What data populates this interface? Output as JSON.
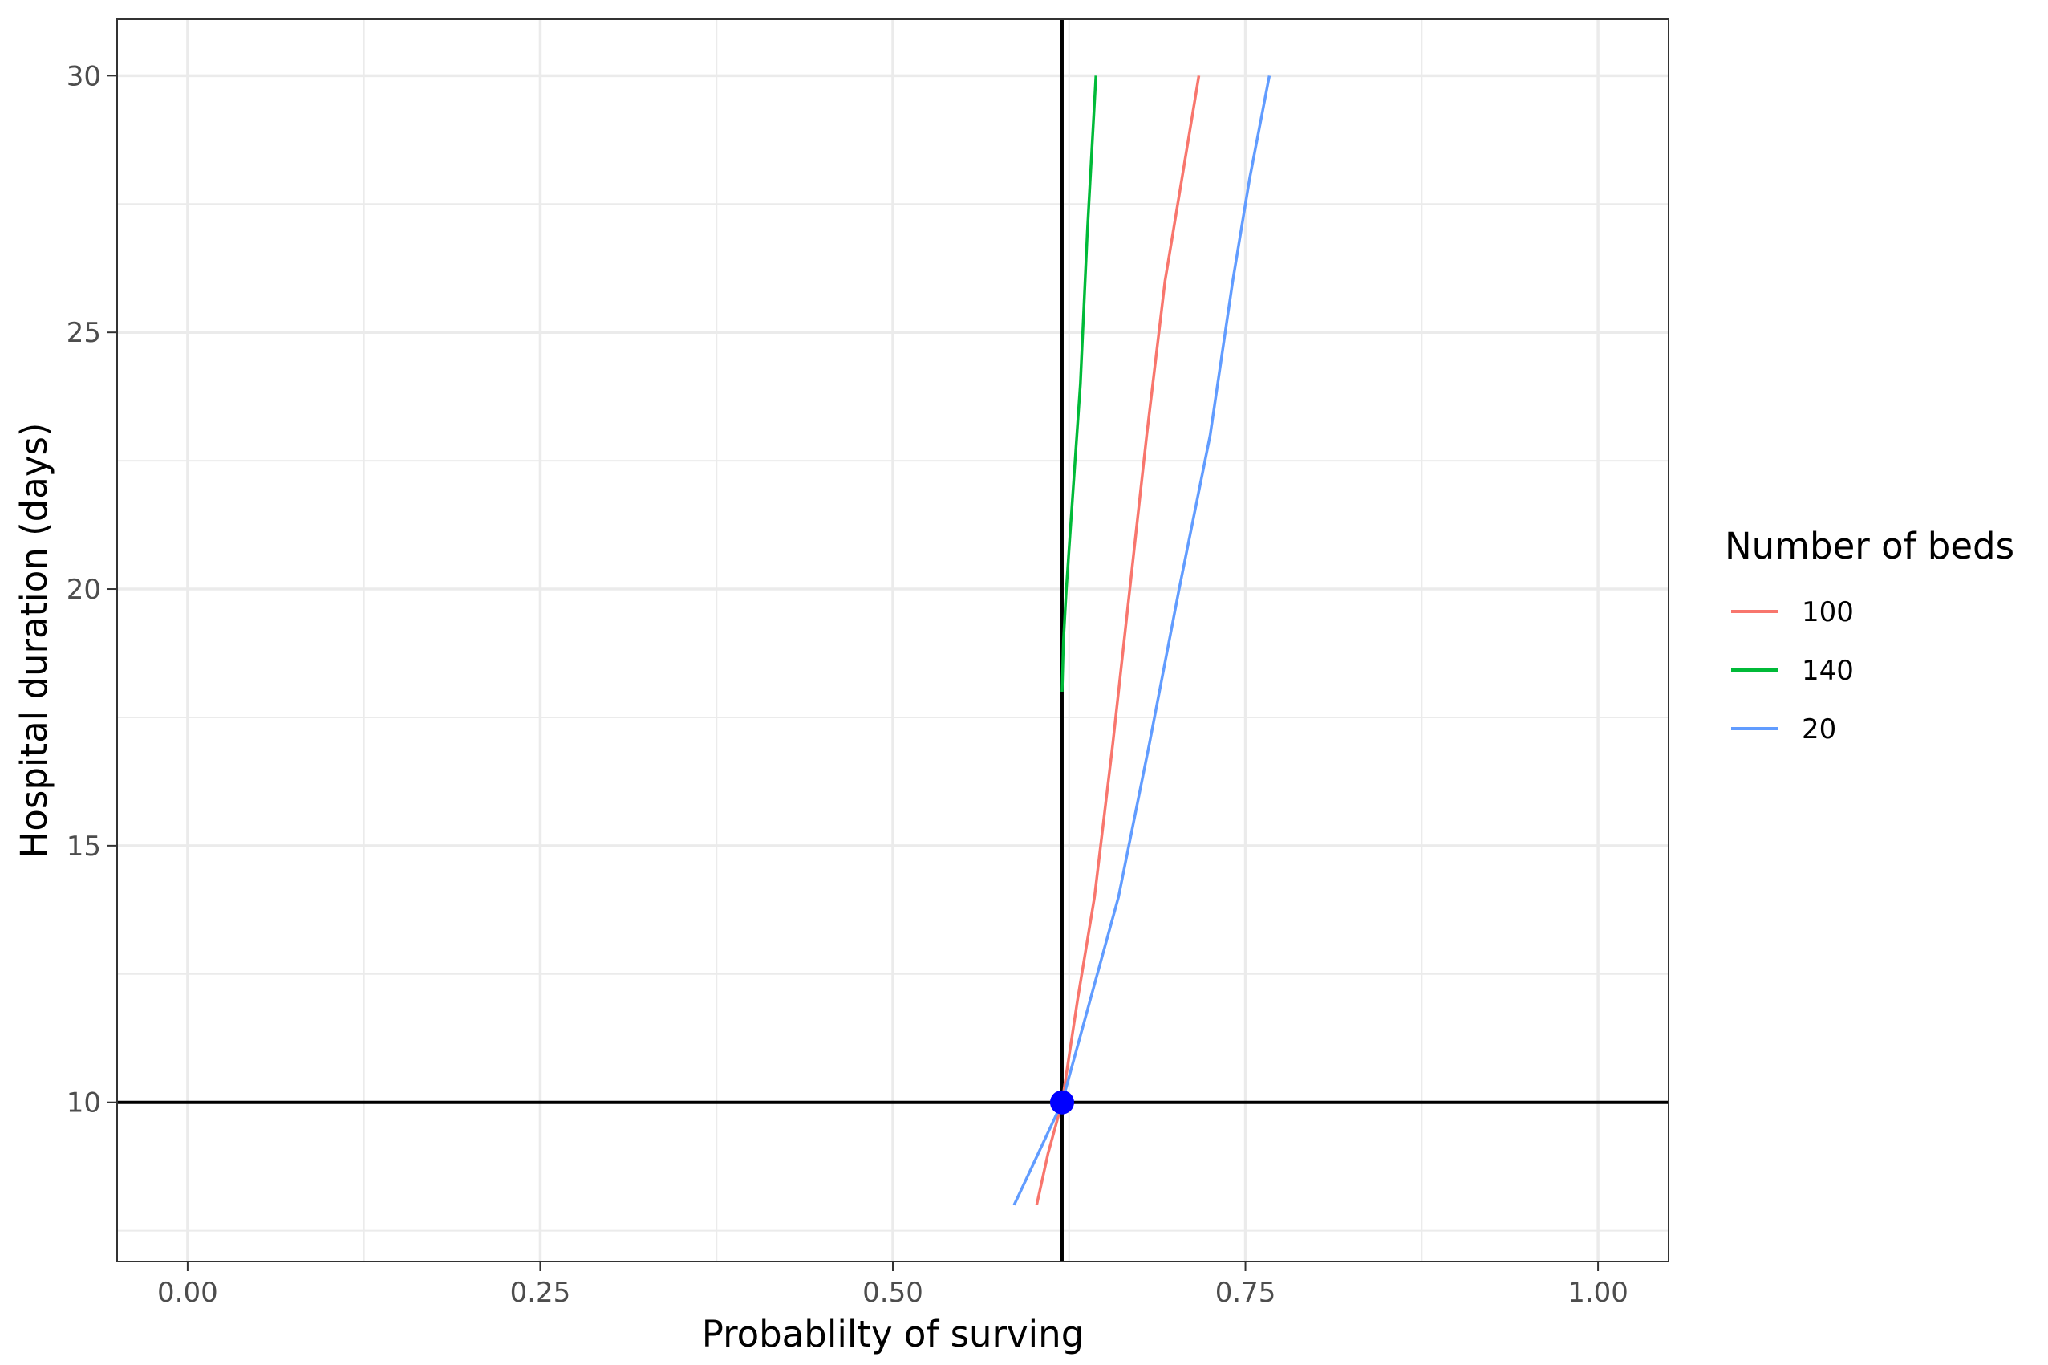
{
  "chart_data": {
    "type": "line",
    "title": "",
    "xlabel": "Probablilty of surving",
    "ylabel": "Hospital duration (days)",
    "xlim": [
      -0.05,
      1.05
    ],
    "ylim": [
      6.9,
      31.1
    ],
    "x_ticks": [
      "0.00",
      "0.25",
      "0.50",
      "0.75",
      "1.00"
    ],
    "y_ticks": [
      "10",
      "15",
      "20",
      "25",
      "30"
    ],
    "grid": true,
    "legend": {
      "title": "Number of beds",
      "position": "right"
    },
    "series": [
      {
        "name": "100",
        "color": "#F8766D",
        "points": [
          [
            0.602,
            8
          ],
          [
            0.61,
            9
          ],
          [
            0.62,
            10
          ],
          [
            0.631,
            12
          ],
          [
            0.643,
            14
          ],
          [
            0.656,
            17
          ],
          [
            0.668,
            20
          ],
          [
            0.68,
            23
          ],
          [
            0.693,
            26
          ],
          [
            0.705,
            28
          ],
          [
            0.717,
            30
          ]
        ]
      },
      {
        "name": "140",
        "color": "#00BA38",
        "points": [
          [
            0.62,
            18
          ],
          [
            0.621,
            19
          ],
          [
            0.623,
            20
          ],
          [
            0.628,
            22
          ],
          [
            0.633,
            24
          ],
          [
            0.638,
            27
          ],
          [
            0.644,
            30
          ]
        ]
      },
      {
        "name": "20",
        "color": "#619CFF",
        "points": [
          [
            0.586,
            8
          ],
          [
            0.603,
            9
          ],
          [
            0.62,
            10
          ],
          [
            0.64,
            12
          ],
          [
            0.66,
            14
          ],
          [
            0.682,
            17
          ],
          [
            0.703,
            20
          ],
          [
            0.725,
            23
          ],
          [
            0.741,
            26
          ],
          [
            0.753,
            28
          ],
          [
            0.767,
            30
          ]
        ]
      }
    ],
    "reference_lines": {
      "x": 0.62,
      "y": 10
    },
    "marker": {
      "x": 0.62,
      "y": 10,
      "color": "#0000FF"
    }
  }
}
